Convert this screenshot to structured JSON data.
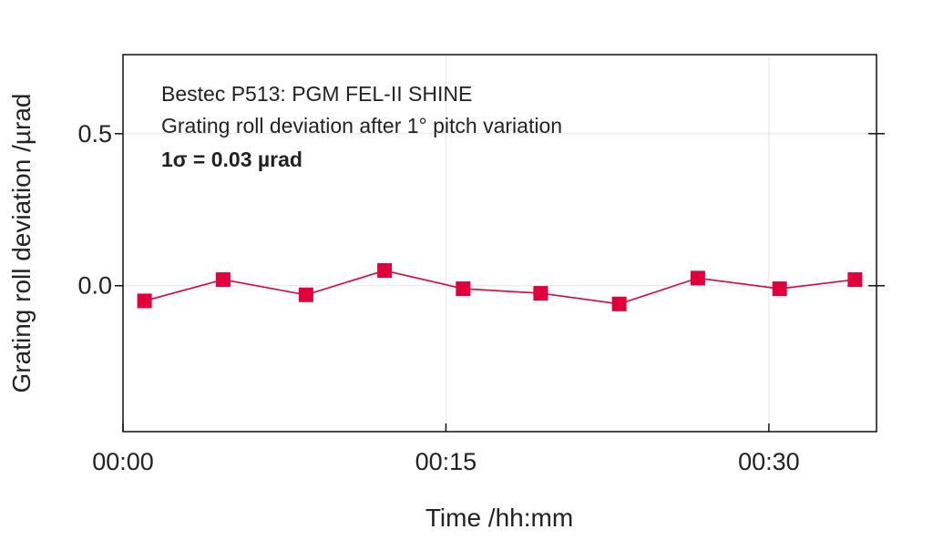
{
  "chart_data": {
    "type": "line",
    "title_lines": [
      "Bestec P513: PGM FEL-II SHINE",
      "Grating roll deviation after 1° pitch variation"
    ],
    "annotation": "1σ = 0.03 µrad",
    "xlabel": "Time /hh:mm",
    "ylabel": "Grating roll deviation /µrad",
    "x_unit": "minutes",
    "xlim": [
      0,
      35
    ],
    "ylim": [
      -0.48,
      0.76
    ],
    "x_ticks": [
      {
        "value": 0,
        "label": "00:00"
      },
      {
        "value": 15,
        "label": "00:15"
      },
      {
        "value": 30,
        "label": "00:30"
      }
    ],
    "y_ticks": [
      {
        "value": 0.0,
        "label": "0.0"
      },
      {
        "value": 0.5,
        "label": "0.5"
      }
    ],
    "grid": true,
    "marker": "square",
    "color": "#e0003c",
    "series": [
      {
        "x": [
          1.0,
          4.65,
          8.5,
          12.15,
          15.8,
          19.4,
          23.05,
          26.7,
          30.5,
          34.0
        ],
        "y": [
          -0.05,
          0.02,
          -0.03,
          0.05,
          -0.01,
          -0.025,
          -0.06,
          0.025,
          -0.01,
          0.02
        ]
      }
    ]
  }
}
